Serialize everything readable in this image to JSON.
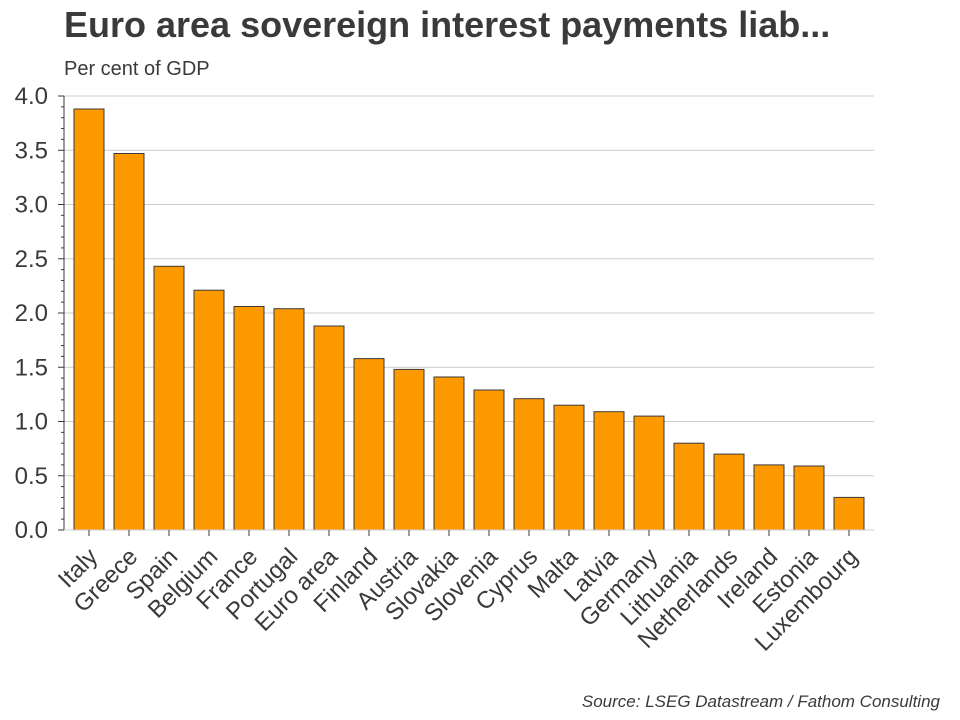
{
  "header": {
    "title": "Euro area sovereign interest payments liab...",
    "subtitle": "Per cent of GDP"
  },
  "footer": {
    "source": "Source: LSEG Datastream / Fathom Consulting"
  },
  "colors": {
    "bar": "#ff9900",
    "bar_stroke": "#3a3a3a",
    "grid": "#cccccc",
    "axis": "#3a3a3a"
  },
  "chart_data": {
    "type": "bar",
    "title": "Euro area sovereign interest payments liab...",
    "subtitle": "Per cent of GDP",
    "xlabel": "",
    "ylabel": "",
    "ylim": [
      0,
      4
    ],
    "yticks": [
      "0.0",
      "0.5",
      "1.0",
      "1.5",
      "2.0",
      "2.5",
      "3.0",
      "3.5",
      "4.0"
    ],
    "grid": true,
    "categories": [
      "Italy",
      "Greece",
      "Spain",
      "Belgium",
      "France",
      "Portugal",
      "Euro area",
      "Finland",
      "Austria",
      "Slovakia",
      "Slovenia",
      "Cyprus",
      "Malta",
      "Latvia",
      "Germany",
      "Lithuania",
      "Netherlands",
      "Ireland",
      "Estonia",
      "Luxembourg"
    ],
    "values": [
      3.88,
      3.47,
      2.43,
      2.21,
      2.06,
      2.04,
      1.88,
      1.58,
      1.48,
      1.41,
      1.29,
      1.21,
      1.15,
      1.09,
      1.05,
      0.8,
      0.7,
      0.6,
      0.59,
      0.3
    ]
  }
}
